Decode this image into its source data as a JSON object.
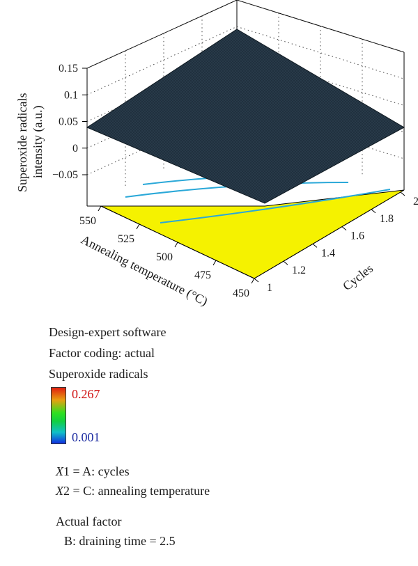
{
  "chart_data": {
    "type": "surface",
    "zlabel_line1": "Superoxide radicals",
    "zlabel_line2": "intensity (a.u.)",
    "xlabel": "Annealing temperature (°C)",
    "ylabel": "Cycles",
    "z_ticks": [
      "0.15",
      "0.1",
      "0.05",
      "0",
      "−0.05"
    ],
    "x_ticks": [
      "550",
      "525",
      "500",
      "475",
      "450"
    ],
    "y_ticks": [
      "1",
      "1.2",
      "1.4",
      "1.6",
      "1.8",
      "2"
    ],
    "x_range": [
      450,
      550
    ],
    "y_range": [
      1,
      2
    ],
    "z_range": [
      -0.05,
      0.15
    ],
    "surface_corners": [
      {
        "temperature": 550,
        "cycles": 1,
        "z": 0.04
      },
      {
        "temperature": 550,
        "cycles": 2,
        "z": 0.17
      },
      {
        "temperature": 450,
        "cycles": 2,
        "z": 0.045
      },
      {
        "temperature": 450,
        "cycles": 1,
        "z": -0.06
      }
    ],
    "surface_color": "#1f2f3c",
    "floor_color": "#f5f200",
    "contour_color": "#2aa8d8",
    "grid": true
  },
  "info": {
    "software": "Design-expert software",
    "coding": "Factor coding: actual",
    "response": "Superoxide radicals",
    "legend_high": "0.267",
    "legend_low": "0.001",
    "legend_high_color": "#d01010",
    "legend_low_color": "#1a2aa0",
    "x1_var": "X",
    "x1_rest": "1 = A: cycles",
    "x2_var": "X",
    "x2_rest": "2 = C: annealing temperature",
    "actual_factor": "Actual factor",
    "draining": "B: draining time = 2.5"
  }
}
